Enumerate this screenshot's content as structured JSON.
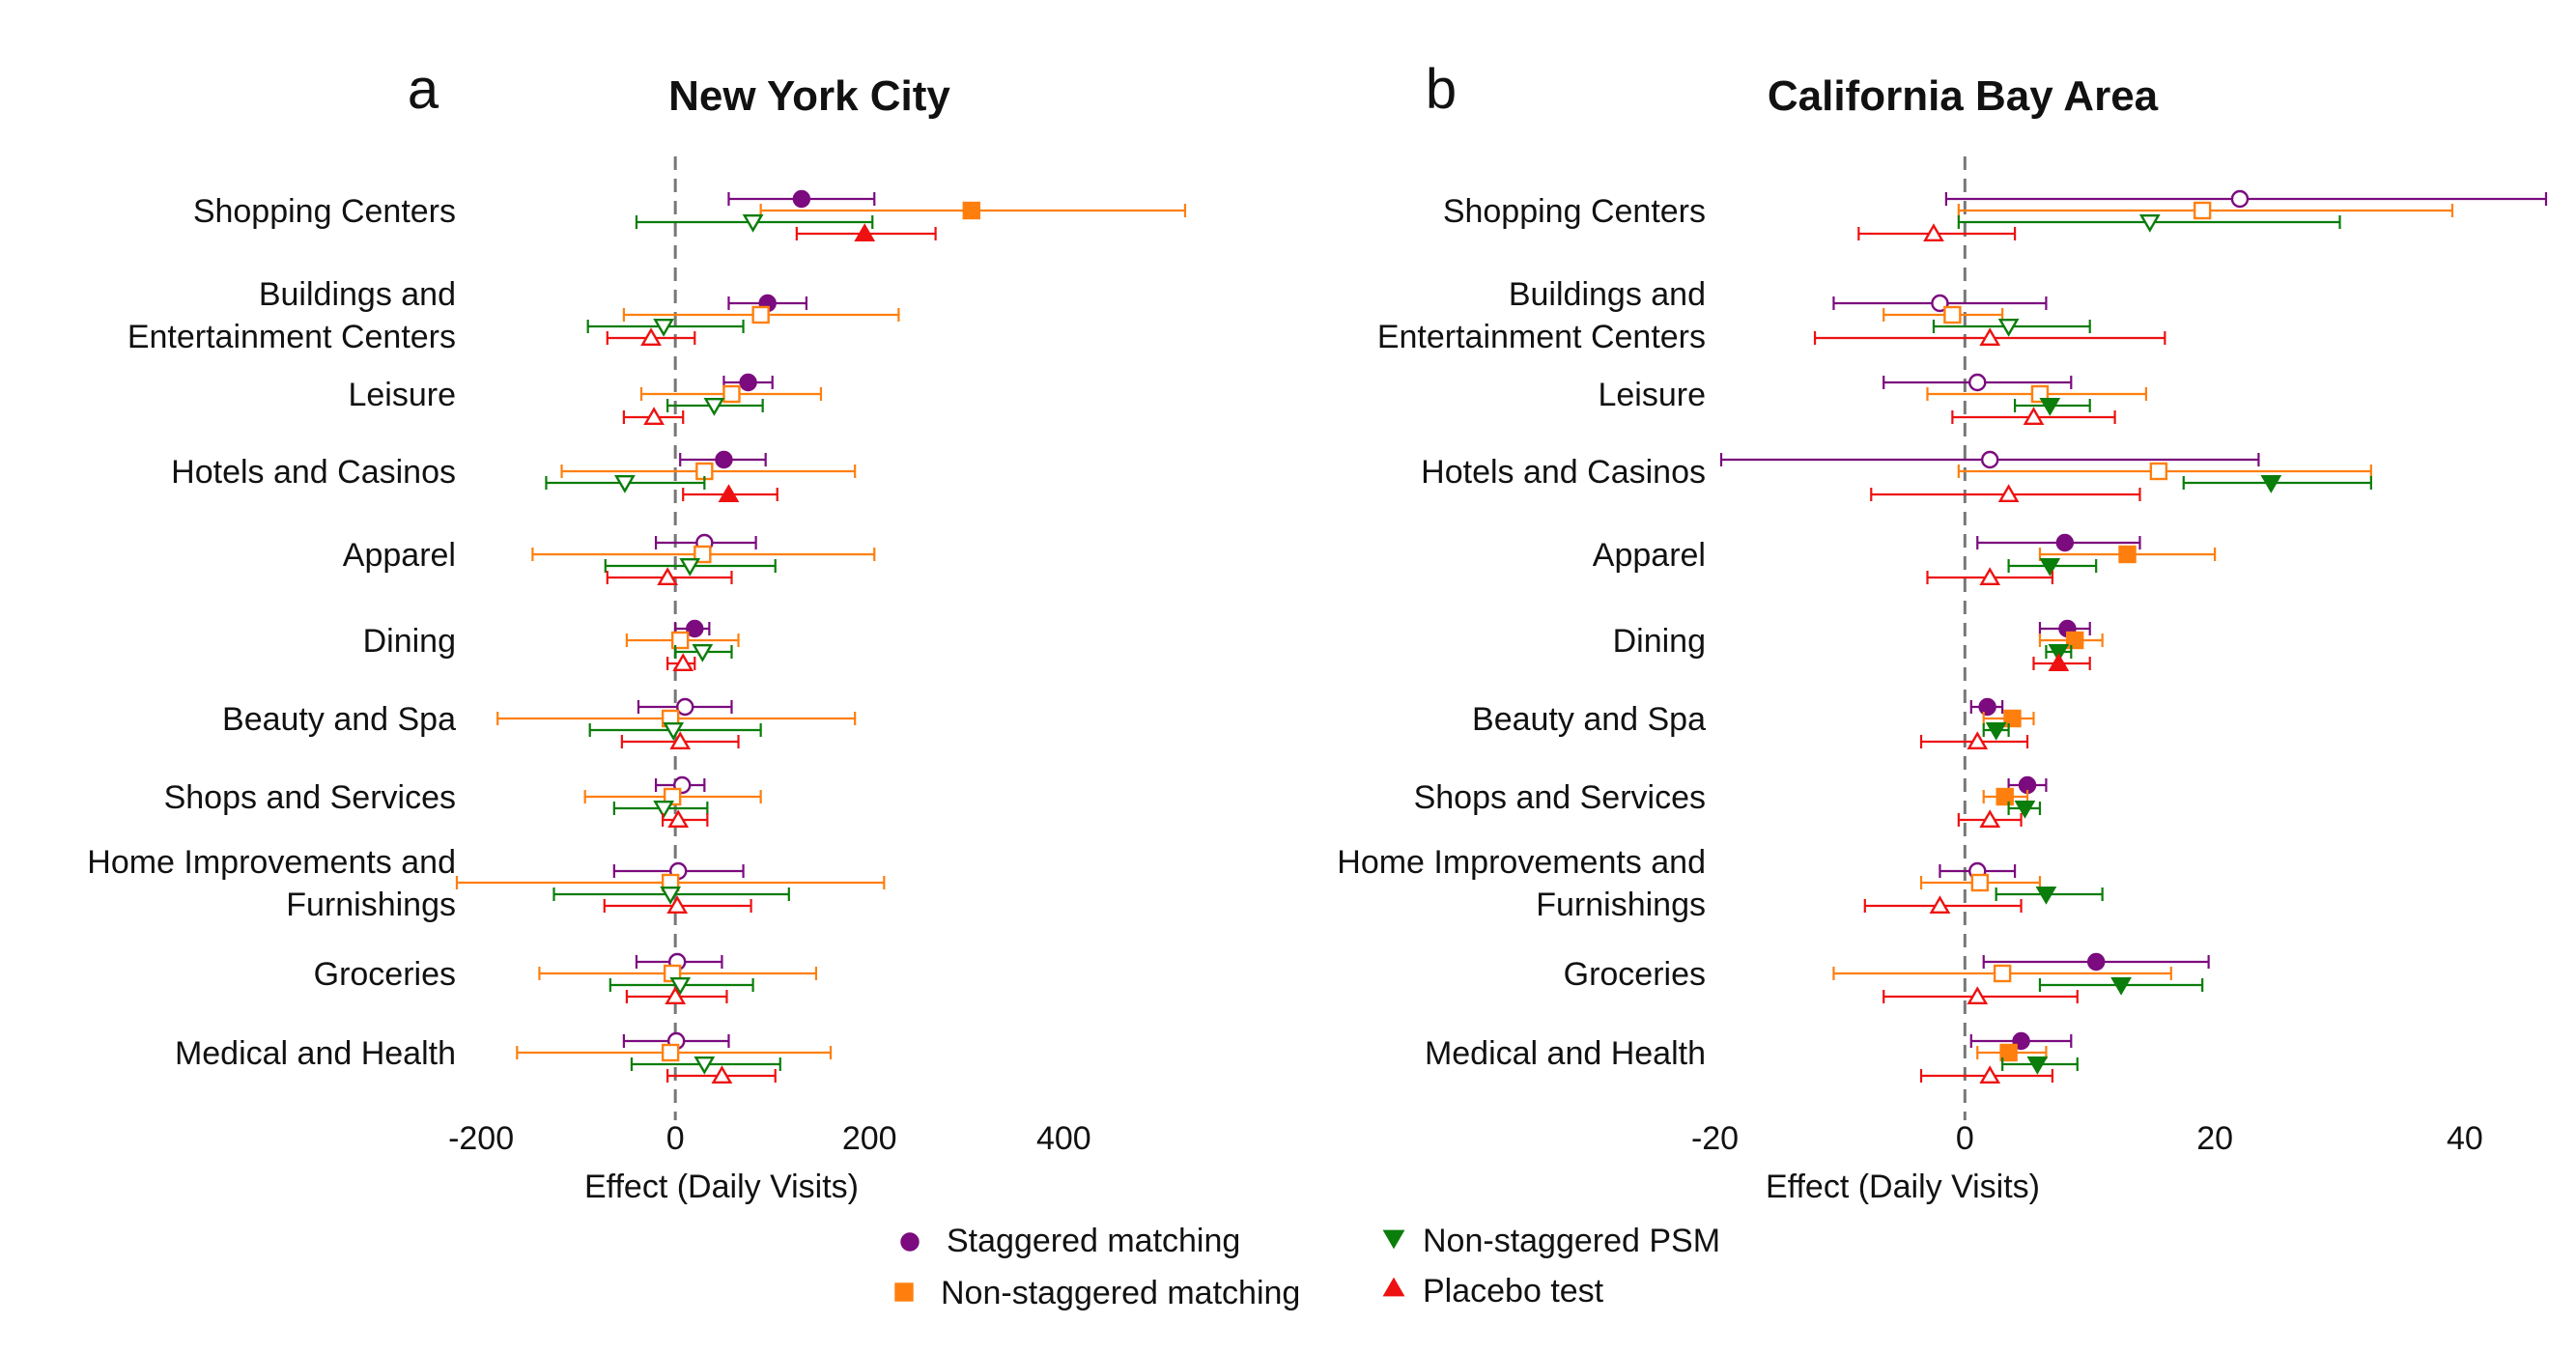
{
  "legend": {
    "position": "bottom",
    "entries": [
      {
        "key": "staggered",
        "label": "Staggered matching",
        "marker": "circle",
        "color": "#7b0b7e"
      },
      {
        "key": "nonstag",
        "label": "Non-staggered matching",
        "marker": "square",
        "color": "#ff7f0e"
      },
      {
        "key": "psm",
        "label": "Non-staggered PSM",
        "marker": "triangle-down",
        "color": "#0a7d0a"
      },
      {
        "key": "placebo",
        "label": "Placebo test",
        "marker": "triangle-up",
        "color": "#ee1111"
      }
    ]
  },
  "chart_data": [
    {
      "type": "forest",
      "panel_letter": "a",
      "title": "New York City",
      "xlabel": "Effect (Daily Visits)",
      "xlim": [
        -220,
        530
      ],
      "xticks": [
        -200,
        0,
        200,
        400
      ],
      "xtick_labels": [
        "-200",
        "0",
        "200",
        "400"
      ],
      "reference_line": 0,
      "categories": [
        "Shopping Centers",
        "Buildings and Entertainment Centers",
        "Leisure",
        "Hotels and Casinos",
        "Apparel",
        "Dining",
        "Beauty and Spa",
        "Shops and Services",
        "Home Improvements and Furnishings",
        "Groceries",
        "Medical and Health"
      ],
      "category_lines": [
        [
          "Shopping Centers"
        ],
        [
          "Buildings and",
          "Entertainment Centers"
        ],
        [
          "Leisure"
        ],
        [
          "Hotels and Casinos"
        ],
        [
          "Apparel"
        ],
        [
          "Dining"
        ],
        [
          "Beauty and Spa"
        ],
        [
          "Shops and Services"
        ],
        [
          "Home Improvements and",
          "Furnishings"
        ],
        [
          "Groceries"
        ],
        [
          "Medical and Health"
        ]
      ],
      "series": [
        {
          "key": "staggered",
          "estimate": [
            130,
            95,
            75,
            50,
            30,
            20,
            10,
            7,
            3,
            2,
            1
          ],
          "lower": [
            55,
            55,
            50,
            5,
            -20,
            0,
            -38,
            -20,
            -63,
            -40,
            -53
          ],
          "upper": [
            205,
            135,
            100,
            93,
            83,
            35,
            58,
            30,
            70,
            48,
            55
          ],
          "significant": [
            true,
            true,
            true,
            true,
            false,
            true,
            false,
            false,
            false,
            false,
            false
          ]
        },
        {
          "key": "nonstag",
          "estimate": [
            305,
            88,
            58,
            30,
            28,
            5,
            -5,
            -3,
            -5,
            -3,
            -5
          ],
          "lower": [
            88,
            -53,
            -35,
            -117,
            -147,
            -50,
            -183,
            -93,
            -225,
            -140,
            -163
          ],
          "upper": [
            525,
            230,
            150,
            185,
            205,
            65,
            185,
            88,
            215,
            145,
            160
          ],
          "significant": [
            true,
            false,
            false,
            false,
            false,
            false,
            false,
            false,
            false,
            false,
            false
          ]
        },
        {
          "key": "psm",
          "estimate": [
            80,
            -12,
            40,
            -52,
            15,
            28,
            -2,
            -12,
            -5,
            5,
            30
          ],
          "lower": [
            -40,
            -90,
            -8,
            -133,
            -72,
            0,
            -88,
            -63,
            -125,
            -67,
            -45
          ],
          "upper": [
            203,
            70,
            90,
            30,
            103,
            58,
            88,
            33,
            117,
            80,
            108
          ],
          "significant": [
            false,
            false,
            false,
            false,
            false,
            false,
            false,
            false,
            false,
            false,
            false
          ]
        },
        {
          "key": "placebo",
          "estimate": [
            195,
            -25,
            -22,
            55,
            -8,
            8,
            5,
            3,
            2,
            0,
            48
          ],
          "lower": [
            125,
            -70,
            -53,
            8,
            -70,
            -8,
            -55,
            -13,
            -73,
            -50,
            -8
          ],
          "upper": [
            268,
            20,
            8,
            105,
            58,
            20,
            65,
            33,
            78,
            53,
            103
          ],
          "significant": [
            true,
            false,
            false,
            true,
            false,
            false,
            false,
            false,
            false,
            false,
            false
          ]
        }
      ]
    },
    {
      "type": "forest",
      "panel_letter": "b",
      "title": "California Bay Area",
      "xlabel": "Effect (Daily Visits)",
      "xlim": [
        -19.5,
        46.5
      ],
      "xticks": [
        -20,
        0,
        20,
        40
      ],
      "xtick_labels": [
        "-20",
        "0",
        "20",
        "40"
      ],
      "reference_line": 0,
      "categories": [
        "Shopping Centers",
        "Buildings and Entertainment Centers",
        "Leisure",
        "Hotels and Casinos",
        "Apparel",
        "Dining",
        "Beauty and Spa",
        "Shops and Services",
        "Home Improvements and Furnishings",
        "Groceries",
        "Medical and Health"
      ],
      "category_lines": [
        [
          "Shopping Centers"
        ],
        [
          "Buildings and",
          "Entertainment Centers"
        ],
        [
          "Leisure"
        ],
        [
          "Hotels and Casinos"
        ],
        [
          "Apparel"
        ],
        [
          "Dining"
        ],
        [
          "Beauty and Spa"
        ],
        [
          "Shops and Services"
        ],
        [
          "Home Improvements and",
          "Furnishings"
        ],
        [
          "Groceries"
        ],
        [
          "Medical and Health"
        ]
      ],
      "series": [
        {
          "key": "staggered",
          "estimate": [
            22,
            -2,
            1,
            2,
            8,
            8.2,
            1.8,
            5,
            1,
            10.5,
            4.5
          ],
          "lower": [
            -1.5,
            -10.5,
            -6.5,
            -19.5,
            1,
            6,
            0.5,
            3.5,
            -2,
            1.5,
            0.5
          ],
          "upper": [
            46.5,
            6.5,
            8.5,
            23.5,
            14,
            10,
            3,
            6.5,
            4,
            19.5,
            8.5
          ],
          "significant": [
            false,
            false,
            false,
            false,
            true,
            true,
            true,
            true,
            false,
            true,
            true
          ]
        },
        {
          "key": "nonstag",
          "estimate": [
            19,
            -1,
            6,
            15.5,
            13,
            8.8,
            3.8,
            3.2,
            1.2,
            3,
            3.5
          ],
          "lower": [
            -0.5,
            -6.5,
            -3,
            -0.5,
            6,
            6,
            1.5,
            1.5,
            -3.5,
            -10.5,
            1
          ],
          "upper": [
            39,
            3,
            14.5,
            32.5,
            20,
            11,
            5.5,
            5,
            6,
            16.5,
            6.5
          ],
          "significant": [
            false,
            false,
            false,
            false,
            true,
            true,
            true,
            true,
            false,
            false,
            true
          ]
        },
        {
          "key": "psm",
          "estimate": [
            14.8,
            3.5,
            6.8,
            24.5,
            6.8,
            7.5,
            2.5,
            4.8,
            6.5,
            12.5,
            5.8
          ],
          "lower": [
            -0.5,
            -2.5,
            4,
            17.5,
            3.5,
            6.5,
            1.5,
            3.5,
            2.5,
            6,
            3
          ],
          "upper": [
            30,
            10,
            10,
            32.5,
            10.5,
            8.5,
            3.5,
            6,
            11,
            19,
            9
          ],
          "significant": [
            false,
            false,
            true,
            true,
            true,
            true,
            true,
            true,
            true,
            true,
            true
          ]
        },
        {
          "key": "placebo",
          "estimate": [
            -2.5,
            2,
            5.5,
            3.5,
            2,
            7.5,
            1,
            2,
            -2,
            1,
            2
          ],
          "lower": [
            -8.5,
            -12,
            -1,
            -7.5,
            -3,
            5.5,
            -3.5,
            -0.5,
            -8,
            -6.5,
            -3.5
          ],
          "upper": [
            4,
            16,
            12,
            14,
            7,
            10,
            5,
            4.5,
            4.5,
            9,
            7
          ],
          "significant": [
            false,
            false,
            false,
            false,
            false,
            true,
            false,
            false,
            false,
            false,
            false
          ]
        }
      ]
    }
  ]
}
